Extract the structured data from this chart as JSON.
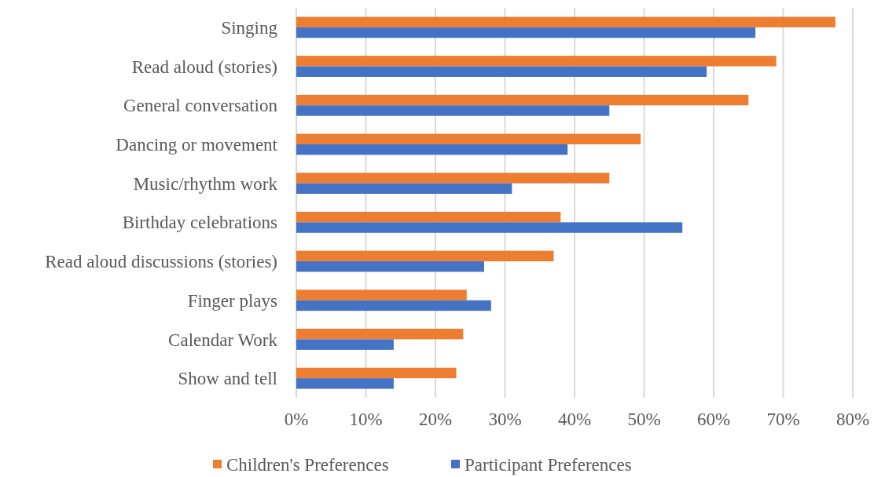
{
  "chart_data": {
    "type": "bar",
    "orientation": "horizontal",
    "categories": [
      "Singing",
      "Read aloud (stories)",
      "General conversation",
      "Dancing or movement",
      "Music/rhythm work",
      "Birthday celebrations",
      "Read aloud discussions (stories)",
      "Finger plays",
      "Calendar Work",
      "Show and tell"
    ],
    "series": [
      {
        "name": "Children's Preferences",
        "color": "#ed7d31",
        "values": [
          77.5,
          69,
          65,
          49.5,
          45,
          38,
          37,
          24.5,
          24,
          23
        ]
      },
      {
        "name": "Participant Preferences",
        "color": "#4472c4",
        "values": [
          66,
          59,
          45,
          39,
          31,
          55.5,
          27,
          28,
          14,
          14
        ]
      }
    ],
    "xlim": [
      0,
      80
    ],
    "xticks": [
      {
        "value": 0,
        "label": "0%"
      },
      {
        "value": 10,
        "label": "10%"
      },
      {
        "value": 20,
        "label": "20%"
      },
      {
        "value": 30,
        "label": "30%"
      },
      {
        "value": 40,
        "label": "40%"
      },
      {
        "value": 50,
        "label": "50%"
      },
      {
        "value": 60,
        "label": "60%"
      },
      {
        "value": 70,
        "label": "70%"
      },
      {
        "value": 80,
        "label": "80%"
      }
    ],
    "grid": "x",
    "legend": "bottom"
  }
}
